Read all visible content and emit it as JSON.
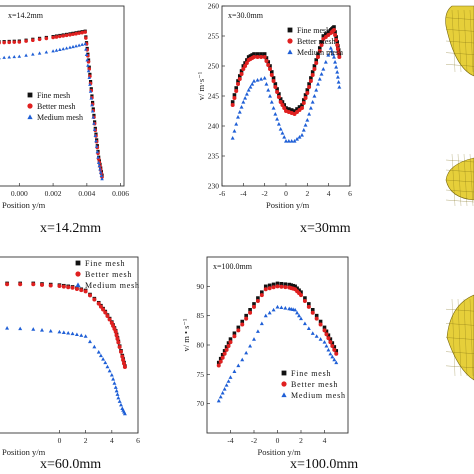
{
  "legend_labels": [
    "Fine mesh",
    "Better mesh",
    "Medium mesh"
  ],
  "colors": {
    "fine": "#111111",
    "better": "#e02020",
    "medium": "#1f5fd6",
    "axis": "#333333"
  },
  "side_images": [
    "mesh-render-top",
    "mesh-render-middle",
    "mesh-render-bottom"
  ],
  "chart_data": [
    {
      "type": "scatter",
      "annotation": "x=14.2mm",
      "caption": "x=14.2mm",
      "xlabel": "Position y/m",
      "ylabel": "",
      "xlim": [
        -0.0015,
        0.0062
      ],
      "ylim": [
        0,
        1.0
      ],
      "xticks": [
        0.0,
        0.002,
        0.004,
        0.006
      ],
      "xticklabels": [
        "0.000",
        "0.002",
        "0.004",
        "0.006"
      ],
      "yticks": [],
      "yticklabels": [],
      "legend_position": "center",
      "series": [
        {
          "name": "Fine mesh",
          "points": [
            [
              -0.0015,
              0.8
            ],
            [
              0.0,
              0.805
            ],
            [
              0.002,
              0.83
            ],
            [
              0.003,
              0.845
            ],
            [
              0.0039,
              0.86
            ],
            [
              0.0041,
              0.7
            ],
            [
              0.0043,
              0.5
            ],
            [
              0.0045,
              0.32
            ],
            [
              0.0047,
              0.16
            ],
            [
              0.0049,
              0.06
            ]
          ]
        },
        {
          "name": "Better mesh",
          "points": [
            [
              -0.0015,
              0.795
            ],
            [
              0.0,
              0.8
            ],
            [
              0.002,
              0.825
            ],
            [
              0.003,
              0.84
            ],
            [
              0.0039,
              0.855
            ],
            [
              0.0041,
              0.69
            ],
            [
              0.0043,
              0.49
            ],
            [
              0.0045,
              0.31
            ],
            [
              0.0047,
              0.15
            ],
            [
              0.0049,
              0.05
            ]
          ]
        },
        {
          "name": "Medium mesh",
          "points": [
            [
              -0.0015,
              0.71
            ],
            [
              0.0,
              0.72
            ],
            [
              0.002,
              0.75
            ],
            [
              0.003,
              0.77
            ],
            [
              0.0039,
              0.79
            ],
            [
              0.0041,
              0.64
            ],
            [
              0.0043,
              0.45
            ],
            [
              0.0045,
              0.28
            ],
            [
              0.0047,
              0.13
            ],
            [
              0.0049,
              0.04
            ]
          ]
        }
      ]
    },
    {
      "type": "scatter",
      "annotation": "x=30.0mm",
      "caption": "x=30mm",
      "xlabel": "Position y/m",
      "ylabel": "v/ m·s⁻¹",
      "xlim": [
        -6,
        6
      ],
      "ylim": [
        230,
        260
      ],
      "xticks": [
        -6,
        -4,
        -2,
        0,
        2,
        4,
        6
      ],
      "xticklabels": [
        "-6",
        "-4",
        "-2",
        "0",
        "2",
        "4",
        "6"
      ],
      "yticks": [
        230,
        235,
        240,
        245,
        250,
        255,
        260
      ],
      "yticklabels": [
        "230",
        "235",
        "240",
        "245",
        "250",
        "255",
        "260"
      ],
      "legend_position": "top-right",
      "series": [
        {
          "name": "Fine mesh",
          "points": [
            [
              -5,
              244
            ],
            [
              -4.5,
              247.5
            ],
            [
              -4,
              250
            ],
            [
              -3.5,
              251.5
            ],
            [
              -3,
              252
            ],
            [
              -2,
              252
            ],
            [
              -1.5,
              250
            ],
            [
              -1,
              247
            ],
            [
              -0.5,
              244.5
            ],
            [
              0,
              243
            ],
            [
              0.8,
              242.5
            ],
            [
              1.5,
              243.5
            ],
            [
              2,
              246
            ],
            [
              2.5,
              249
            ],
            [
              3,
              252
            ],
            [
              3.5,
              255
            ],
            [
              4.2,
              256
            ],
            [
              4.5,
              256.5
            ],
            [
              4.8,
              254
            ],
            [
              5,
              252
            ]
          ]
        },
        {
          "name": "Better mesh",
          "points": [
            [
              -5,
              243.5
            ],
            [
              -4.5,
              247
            ],
            [
              -4,
              249.5
            ],
            [
              -3.5,
              251
            ],
            [
              -3,
              251.5
            ],
            [
              -2,
              251.5
            ],
            [
              -1.5,
              249.5
            ],
            [
              -1,
              246.5
            ],
            [
              -0.5,
              244
            ],
            [
              0,
              242.5
            ],
            [
              0.8,
              242
            ],
            [
              1.5,
              243
            ],
            [
              2,
              245.5
            ],
            [
              2.5,
              248.5
            ],
            [
              3,
              251.5
            ],
            [
              3.5,
              254.5
            ],
            [
              4.2,
              255.5
            ],
            [
              4.5,
              256
            ],
            [
              4.8,
              253.5
            ],
            [
              5,
              251.5
            ]
          ]
        },
        {
          "name": "Medium mesh",
          "points": [
            [
              -5,
              238
            ],
            [
              -4.5,
              241.5
            ],
            [
              -4,
              244
            ],
            [
              -3.5,
              246
            ],
            [
              -3,
              247.5
            ],
            [
              -2,
              248
            ],
            [
              -1.5,
              245
            ],
            [
              -1,
              242
            ],
            [
              -0.5,
              239.5
            ],
            [
              0,
              237.5
            ],
            [
              0.8,
              237.5
            ],
            [
              1.5,
              238.5
            ],
            [
              2,
              241
            ],
            [
              2.5,
              244
            ],
            [
              3,
              247
            ],
            [
              3.5,
              249.5
            ],
            [
              4.2,
              253
            ],
            [
              4.5,
              251.5
            ],
            [
              4.8,
              249
            ],
            [
              5,
              246.5
            ]
          ]
        }
      ]
    },
    {
      "type": "scatter",
      "annotation": "",
      "caption": "x=60.0mm",
      "xlabel": "Position y/m",
      "ylabel": "",
      "xlim": [
        -5,
        6
      ],
      "ylim": [
        0,
        1.0
      ],
      "xticks": [
        0,
        2,
        4,
        6
      ],
      "xticklabels": [
        "0",
        "2",
        "4",
        "6"
      ],
      "yticks": [],
      "yticklabels": [],
      "legend_position": "top-right",
      "series": [
        {
          "name": "Fine mesh",
          "points": [
            [
              -5,
              0.85
            ],
            [
              -2,
              0.85
            ],
            [
              0,
              0.84
            ],
            [
              1,
              0.83
            ],
            [
              2,
              0.81
            ],
            [
              3,
              0.74
            ],
            [
              3.5,
              0.69
            ],
            [
              4,
              0.63
            ],
            [
              4.3,
              0.58
            ],
            [
              4.5,
              0.52
            ],
            [
              4.8,
              0.44
            ],
            [
              5,
              0.38
            ]
          ]
        },
        {
          "name": "Better mesh",
          "points": [
            [
              -5,
              0.845
            ],
            [
              -2,
              0.845
            ],
            [
              0,
              0.835
            ],
            [
              1,
              0.825
            ],
            [
              2,
              0.805
            ],
            [
              3,
              0.735
            ],
            [
              3.5,
              0.685
            ],
            [
              4,
              0.625
            ],
            [
              4.3,
              0.575
            ],
            [
              4.5,
              0.515
            ],
            [
              4.8,
              0.435
            ],
            [
              5,
              0.375
            ]
          ]
        },
        {
          "name": "Medium mesh",
          "points": [
            [
              -5,
              0.6
            ],
            [
              -2,
              0.59
            ],
            [
              0,
              0.575
            ],
            [
              1,
              0.565
            ],
            [
              2,
              0.55
            ],
            [
              3,
              0.46
            ],
            [
              3.5,
              0.4
            ],
            [
              4,
              0.33
            ],
            [
              4.3,
              0.26
            ],
            [
              4.5,
              0.2
            ],
            [
              4.8,
              0.14
            ],
            [
              5,
              0.11
            ]
          ]
        }
      ]
    },
    {
      "type": "scatter",
      "annotation": "x=100.0mm",
      "caption": "x=100.0mm",
      "xlabel": "Position y/m",
      "ylabel": "v/ m • s⁻¹",
      "xlim": [
        -6,
        6
      ],
      "ylim": [
        65,
        95
      ],
      "xticks": [
        -4,
        -2,
        0,
        2,
        4
      ],
      "xticklabels": [
        "-4",
        "-2",
        "0",
        "2",
        "4"
      ],
      "yticks": [
        70,
        75,
        80,
        85,
        90
      ],
      "yticklabels": [
        "70",
        "75",
        "80",
        "85",
        "90"
      ],
      "legend_position": "bottom-right",
      "series": [
        {
          "name": "Fine mesh",
          "points": [
            [
              -5,
              77
            ],
            [
              -4.5,
              79
            ],
            [
              -4,
              81
            ],
            [
              -3,
              84
            ],
            [
              -2,
              87
            ],
            [
              -1,
              90
            ],
            [
              0,
              90.5
            ],
            [
              1,
              90.3
            ],
            [
              1.5,
              90
            ],
            [
              2,
              89
            ],
            [
              3,
              86
            ],
            [
              4,
              83
            ],
            [
              4.5,
              81
            ],
            [
              5,
              79
            ]
          ]
        },
        {
          "name": "Better mesh",
          "points": [
            [
              -5,
              76.5
            ],
            [
              -4.5,
              78.5
            ],
            [
              -4,
              80.5
            ],
            [
              -3,
              83.5
            ],
            [
              -2,
              86.5
            ],
            [
              -1,
              89.5
            ],
            [
              0,
              90
            ],
            [
              1,
              89.8
            ],
            [
              1.5,
              89.5
            ],
            [
              2,
              88.5
            ],
            [
              3,
              85.5
            ],
            [
              4,
              82.5
            ],
            [
              4.5,
              80.5
            ],
            [
              5,
              78.5
            ]
          ]
        },
        {
          "name": "Medium mesh",
          "points": [
            [
              -5,
              70.5
            ],
            [
              -4.5,
              72.5
            ],
            [
              -4,
              74.5
            ],
            [
              -3,
              77.5
            ],
            [
              -2,
              81
            ],
            [
              -1,
              85
            ],
            [
              0,
              86.5
            ],
            [
              1,
              86.2
            ],
            [
              1.5,
              86
            ],
            [
              2,
              84.5
            ],
            [
              3,
              82
            ],
            [
              4,
              80.5
            ],
            [
              4.5,
              78.5
            ],
            [
              5,
              77
            ]
          ]
        }
      ]
    }
  ]
}
